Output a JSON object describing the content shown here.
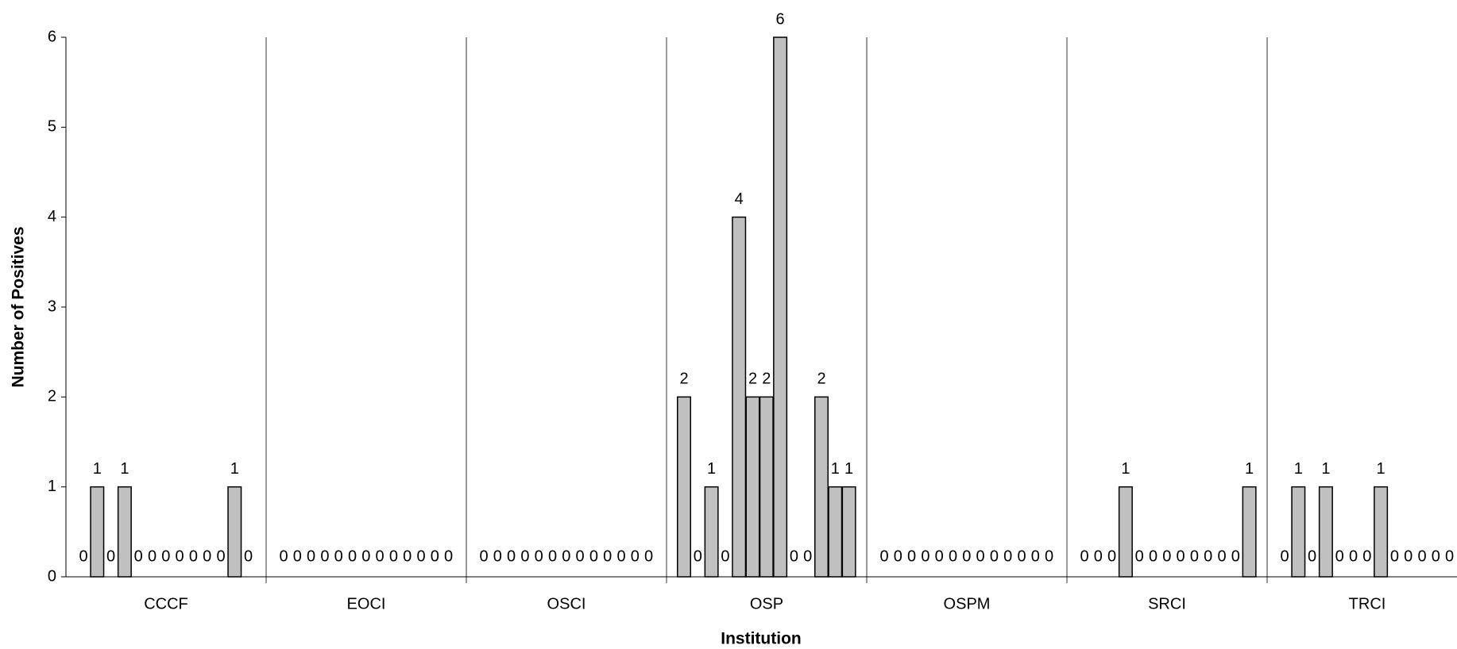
{
  "chart_data": {
    "type": "grouped-bar",
    "x_label": "Institution",
    "y_label": "Number of Positives",
    "categories": [
      "CCCF",
      "EOCI",
      "OSCI",
      "OSP",
      "OSPM",
      "SRCI",
      "TRCI"
    ],
    "values": [
      [
        0,
        1,
        0,
        1,
        0,
        0,
        0,
        0,
        0,
        0,
        0,
        1,
        0
      ],
      [
        0,
        0,
        0,
        0,
        0,
        0,
        0,
        0,
        0,
        0,
        0,
        0,
        0
      ],
      [
        0,
        0,
        0,
        0,
        0,
        0,
        0,
        0,
        0,
        0,
        0,
        0,
        0
      ],
      [
        2,
        0,
        1,
        0,
        4,
        2,
        2,
        6,
        0,
        0,
        2,
        1,
        1
      ],
      [
        0,
        0,
        0,
        0,
        0,
        0,
        0,
        0,
        0,
        0,
        0,
        0,
        0
      ],
      [
        0,
        0,
        0,
        1,
        0,
        0,
        0,
        0,
        0,
        0,
        0,
        0,
        1
      ],
      [
        0,
        1,
        0,
        1,
        0,
        0,
        0,
        1,
        0,
        0,
        0,
        0,
        0
      ]
    ],
    "color": "#c0c0c0",
    "ylim": [
      0,
      6
    ],
    "yticks": [
      0,
      1,
      2,
      3,
      4,
      5,
      6
    ]
  }
}
